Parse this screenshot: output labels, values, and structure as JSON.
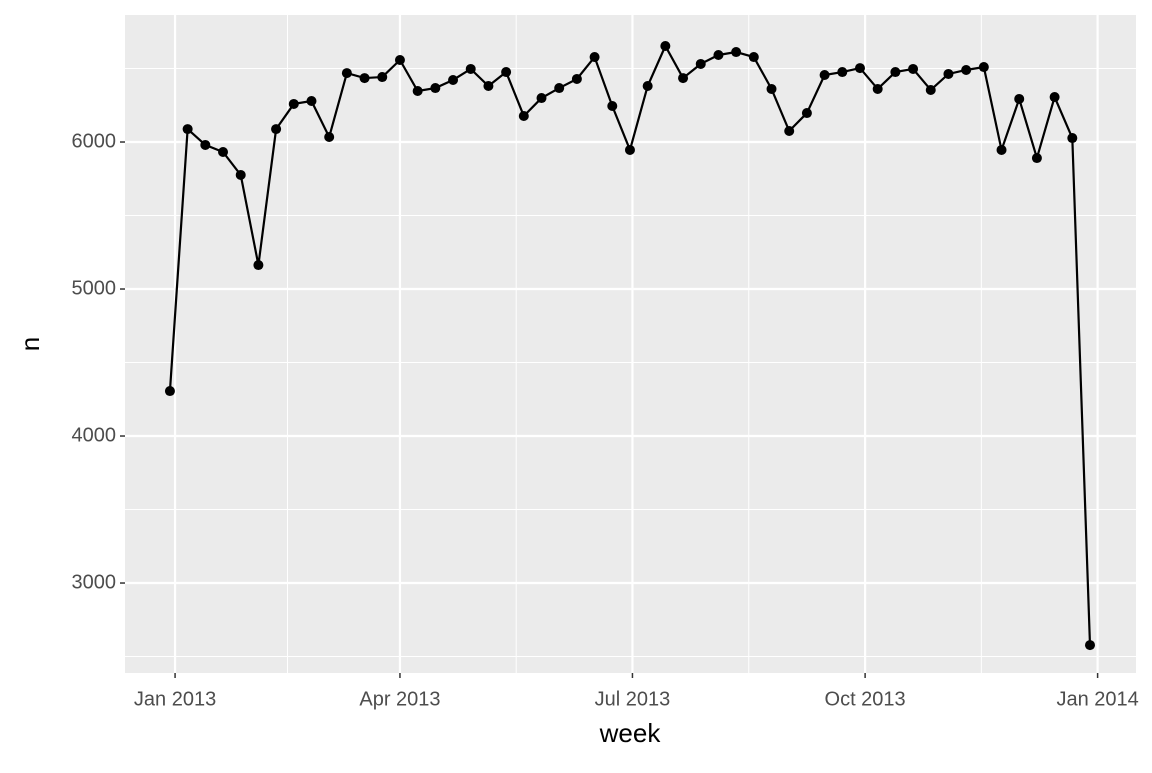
{
  "chart_data": {
    "type": "line",
    "x_label": "week",
    "y_label": "n",
    "categories": [
      null,
      null,
      null,
      null,
      null,
      null,
      null,
      null,
      null,
      null,
      null,
      null,
      null,
      null,
      null,
      null,
      null,
      null,
      null,
      null,
      null,
      null,
      null,
      null,
      null,
      null,
      null,
      null,
      null,
      null,
      null,
      null,
      null,
      null,
      null,
      null,
      null,
      null,
      null,
      null,
      null,
      null,
      null,
      null,
      null,
      null,
      null,
      null,
      null,
      null,
      null,
      null,
      null
    ],
    "series": [
      {
        "color": "#000000",
        "values": [
          4306,
          6088,
          5980,
          5932,
          5776,
          5163,
          6088,
          6259,
          6279,
          6034,
          6469,
          6435,
          6442,
          6558,
          6347,
          6367,
          6422,
          6497,
          6381,
          6476,
          6177,
          6299,
          6367,
          6429,
          6578,
          6245,
          5946,
          6381,
          6653,
          6435,
          6531,
          6592,
          6612,
          6578,
          6361,
          6075,
          6197,
          6456,
          6476,
          6503,
          6361,
          6476,
          6497,
          6354,
          6463,
          6490,
          6510,
          5946,
          6293,
          5891,
          6306,
          6027,
          2578
        ]
      }
    ],
    "xlim": [
      -2.54,
      54.6
    ],
    "xticks": [
      {
        "value": 0.29,
        "label": "Jan 2013"
      },
      {
        "value": 13.0,
        "label": "Apr 2013"
      },
      {
        "value": 26.14,
        "label": "Jul 2013"
      },
      {
        "value": 39.29,
        "label": "Oct 2013"
      },
      {
        "value": 52.43,
        "label": "Jan 2014"
      }
    ],
    "ylim": [
      2388,
      6864
    ],
    "yticks": [
      3000,
      4000,
      5000,
      6000
    ],
    "grid": true
  }
}
